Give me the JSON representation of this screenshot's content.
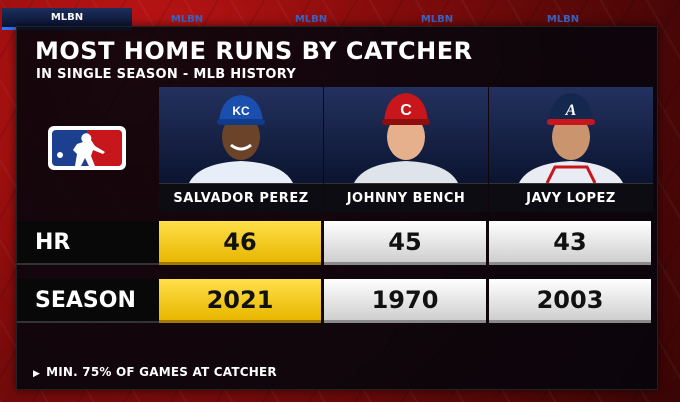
{
  "tabs": [
    "MLBN",
    "MLBN",
    "MLBN",
    "MLBN",
    "MLBN"
  ],
  "header": {
    "title": "MOST HOME RUNS BY CATCHER",
    "subtitle": "IN SINGLE SEASON - MLB HISTORY"
  },
  "players": [
    {
      "name": "SALVADOR PEREZ",
      "cap_color": "#1a4fb0",
      "cap_logo": "KC",
      "highlight": true
    },
    {
      "name": "JOHNNY BENCH",
      "cap_color": "#c8161d",
      "cap_logo": "C",
      "highlight": false
    },
    {
      "name": "JAVY LOPEZ",
      "cap_color": "#13274f",
      "cap_logo": "A",
      "highlight": false
    }
  ],
  "rows": {
    "hr": {
      "label": "HR",
      "values": [
        "46",
        "45",
        "43"
      ]
    },
    "season": {
      "label": "SEASON",
      "values": [
        "2021",
        "1970",
        "2003"
      ]
    }
  },
  "footnote": "MIN. 75% OF GAMES AT CATCHER",
  "colors": {
    "highlight": "#f2c200",
    "background": "#8e0d0d",
    "panel": "#06060c"
  }
}
